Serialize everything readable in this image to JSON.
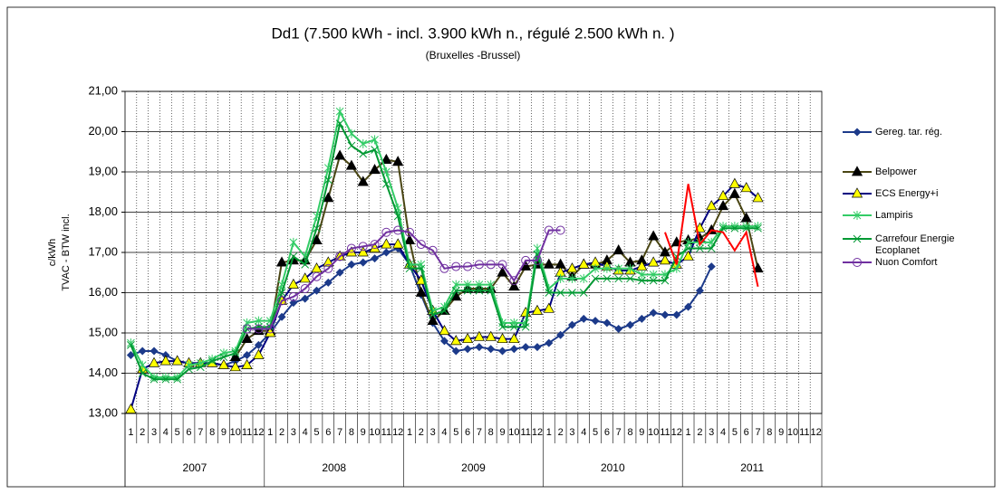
{
  "chart_data": {
    "type": "line",
    "title": "Dd1 (7.500 kWh - incl. 3.900 kWh n., régulé 2.500 kWh n. )",
    "subtitle": "(Bruxelles -Brussel)",
    "y_label": [
      "c/kWh",
      "TVAC - BTW incl."
    ],
    "categories": [
      "1",
      "2",
      "3",
      "4",
      "5",
      "6",
      "7",
      "8",
      "9",
      "10",
      "11",
      "12",
      "1",
      "2",
      "3",
      "4",
      "5",
      "6",
      "7",
      "8",
      "9",
      "10",
      "11",
      "12",
      "1",
      "2",
      "3",
      "4",
      "5",
      "6",
      "7",
      "8",
      "9",
      "10",
      "11",
      "12",
      "1",
      "2",
      "3",
      "4",
      "5",
      "6",
      "7",
      "8",
      "9",
      "10",
      "11",
      "12",
      "1",
      "2",
      "3",
      "4",
      "5",
      "6",
      "7",
      "8",
      "9",
      "10",
      "11",
      "12"
    ],
    "years": [
      "2007",
      "2008",
      "2009",
      "2010",
      "2011"
    ],
    "ylim": [
      13,
      21
    ],
    "yticks": [
      {
        "value": 13,
        "label": "13,00"
      },
      {
        "value": 14,
        "label": "14,00"
      },
      {
        "value": 15,
        "label": "15,00"
      },
      {
        "value": 16,
        "label": "16,00"
      },
      {
        "value": 17,
        "label": "17,00"
      },
      {
        "value": 18,
        "label": "18,00"
      },
      {
        "value": 19,
        "label": "19,00"
      },
      {
        "value": 20,
        "label": "20,00"
      },
      {
        "value": 21,
        "label": "21,00"
      }
    ],
    "grid": true,
    "legend": "right",
    "series": [
      {
        "name": "Gereg. tar. rég.",
        "color": "#1c3a8a",
        "marker": "diamond",
        "marker_color": "#1c3a8a",
        "values": [
          14.45,
          14.55,
          14.55,
          14.45,
          14.3,
          14.25,
          14.25,
          14.25,
          14.2,
          14.3,
          14.45,
          14.7,
          15.0,
          15.4,
          15.75,
          15.85,
          16.05,
          16.25,
          16.5,
          16.7,
          16.75,
          16.85,
          17.0,
          17.1,
          16.7,
          15.95,
          15.25,
          14.8,
          14.55,
          14.6,
          14.65,
          14.6,
          14.55,
          14.6,
          14.65,
          14.65,
          14.75,
          14.95,
          15.2,
          15.35,
          15.3,
          15.25,
          15.1,
          15.2,
          15.35,
          15.5,
          15.45,
          15.45,
          15.65,
          16.05,
          16.65,
          null,
          null,
          null,
          null,
          null,
          null,
          null,
          null,
          null
        ]
      },
      {
        "name": "Belpower",
        "color": "#4a4614",
        "marker": "triangle",
        "marker_color": "#000000",
        "values": [
          null,
          null,
          null,
          null,
          null,
          null,
          null,
          null,
          null,
          14.4,
          14.85,
          15.05,
          15.05,
          16.75,
          16.8,
          16.8,
          17.3,
          18.35,
          19.4,
          19.15,
          18.75,
          19.05,
          19.3,
          19.25,
          17.3,
          16.0,
          15.3,
          15.55,
          15.9,
          16.1,
          16.1,
          16.1,
          16.5,
          16.15,
          16.65,
          16.7,
          16.7,
          16.7,
          16.4,
          16.7,
          16.7,
          16.8,
          17.05,
          16.75,
          16.8,
          17.4,
          17.0,
          17.25,
          17.3,
          17.35,
          17.55,
          18.15,
          18.45,
          17.85,
          16.6,
          null,
          null,
          null,
          null,
          null
        ]
      },
      {
        "name": "ECS Energy+i",
        "color": "#000080",
        "marker": "triangle",
        "marker_color": "#ffff00",
        "values": [
          13.1,
          14.1,
          14.25,
          14.3,
          14.3,
          14.25,
          14.25,
          14.25,
          14.2,
          14.15,
          14.2,
          14.45,
          15.0,
          15.8,
          16.2,
          16.35,
          16.6,
          16.75,
          16.9,
          17.0,
          17.0,
          17.1,
          17.2,
          17.2,
          16.7,
          16.3,
          15.55,
          15.05,
          14.8,
          14.85,
          14.9,
          14.9,
          14.85,
          14.85,
          15.5,
          15.55,
          15.6,
          16.5,
          16.6,
          16.7,
          16.75,
          16.65,
          16.55,
          16.55,
          16.65,
          16.75,
          16.8,
          16.7,
          16.9,
          17.6,
          18.15,
          18.4,
          18.7,
          18.6,
          18.35,
          null,
          null,
          null,
          null,
          null
        ]
      },
      {
        "name": "Lampiris",
        "color": "#33cc66",
        "marker": "star",
        "marker_color": "#33cc66",
        "values": [
          14.75,
          14.2,
          13.9,
          13.9,
          13.9,
          14.2,
          14.25,
          14.35,
          14.5,
          14.55,
          15.25,
          15.3,
          15.3,
          16.2,
          17.25,
          16.9,
          17.9,
          19.1,
          20.5,
          19.95,
          19.7,
          19.8,
          19.0,
          18.1,
          16.7,
          16.7,
          15.55,
          15.65,
          16.2,
          16.2,
          16.2,
          16.2,
          15.25,
          15.25,
          15.25,
          17.1,
          16.1,
          16.35,
          16.35,
          16.35,
          16.6,
          16.6,
          16.6,
          16.6,
          16.45,
          16.45,
          16.45,
          16.6,
          17.25,
          17.25,
          17.25,
          17.65,
          17.65,
          17.65,
          17.65,
          null,
          null,
          null,
          null,
          null
        ]
      },
      {
        "name": "Carrefour Energie\nEcoplanet",
        "color": "#009933",
        "marker": "cross",
        "marker_color": "#009933",
        "values": [
          14.7,
          14.0,
          13.85,
          13.85,
          13.85,
          14.1,
          14.15,
          14.3,
          14.4,
          14.5,
          15.1,
          15.15,
          15.15,
          16.0,
          16.9,
          16.7,
          17.6,
          18.8,
          20.2,
          19.65,
          19.45,
          19.55,
          18.7,
          17.9,
          16.6,
          16.6,
          15.45,
          15.55,
          16.05,
          16.05,
          16.05,
          16.05,
          15.15,
          15.15,
          15.15,
          16.95,
          16.0,
          16.0,
          16.0,
          16.0,
          16.35,
          16.35,
          16.35,
          16.35,
          16.3,
          16.3,
          16.3,
          16.9,
          17.1,
          17.1,
          17.1,
          17.6,
          17.6,
          17.6,
          17.6,
          null,
          null,
          null,
          null,
          null
        ]
      },
      {
        "name": "Nuon Comfort",
        "color": "#7030a0",
        "marker": "circle",
        "marker_color": "#7030a0",
        "values": [
          null,
          null,
          null,
          null,
          null,
          null,
          null,
          null,
          null,
          null,
          15.1,
          15.1,
          15.1,
          15.8,
          15.9,
          16.1,
          16.4,
          16.6,
          16.9,
          17.1,
          17.15,
          17.2,
          17.5,
          17.55,
          17.5,
          17.2,
          17.05,
          16.6,
          16.65,
          16.65,
          16.7,
          16.7,
          16.7,
          16.3,
          16.8,
          16.8,
          17.55,
          17.55,
          null,
          null,
          null,
          null,
          null,
          null,
          null,
          null,
          null,
          null,
          null,
          null,
          null,
          null,
          null,
          null,
          null,
          null,
          null,
          null,
          null,
          null
        ]
      },
      {
        "color": "#ff0000",
        "marker": "dash",
        "marker_color": "#ff0000",
        "values": [
          null,
          null,
          null,
          null,
          null,
          null,
          null,
          null,
          null,
          null,
          null,
          null,
          null,
          null,
          null,
          null,
          null,
          null,
          null,
          null,
          null,
          null,
          null,
          null,
          null,
          null,
          null,
          null,
          null,
          null,
          null,
          null,
          null,
          null,
          null,
          null,
          null,
          null,
          null,
          null,
          null,
          null,
          null,
          null,
          null,
          null,
          17.5,
          16.7,
          18.7,
          17.2,
          17.55,
          17.5,
          17.05,
          17.5,
          16.15,
          null,
          null,
          null,
          null,
          null
        ]
      }
    ]
  }
}
